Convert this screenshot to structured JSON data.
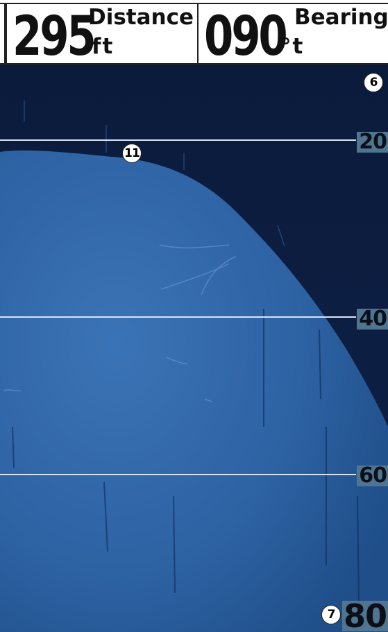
{
  "topbar": {
    "distance": {
      "value": "295",
      "label": "Distance",
      "unit": "ft"
    },
    "bearing": {
      "value": "090",
      "label": "Bearing",
      "unit": "°t"
    }
  },
  "sonar": {
    "depth_scale": [
      {
        "label": "20"
      },
      {
        "label": "40"
      },
      {
        "label": "60"
      }
    ],
    "bottom_depth": "80",
    "callouts": {
      "top_right": "6",
      "bottom_contact": "11",
      "bottom_left_of_depth": "7"
    }
  },
  "colors": {
    "water": "#0b1c40",
    "bottom": "#2f64a6",
    "depth_line": "#d8e4f2",
    "label_bg": "#4f7590"
  }
}
